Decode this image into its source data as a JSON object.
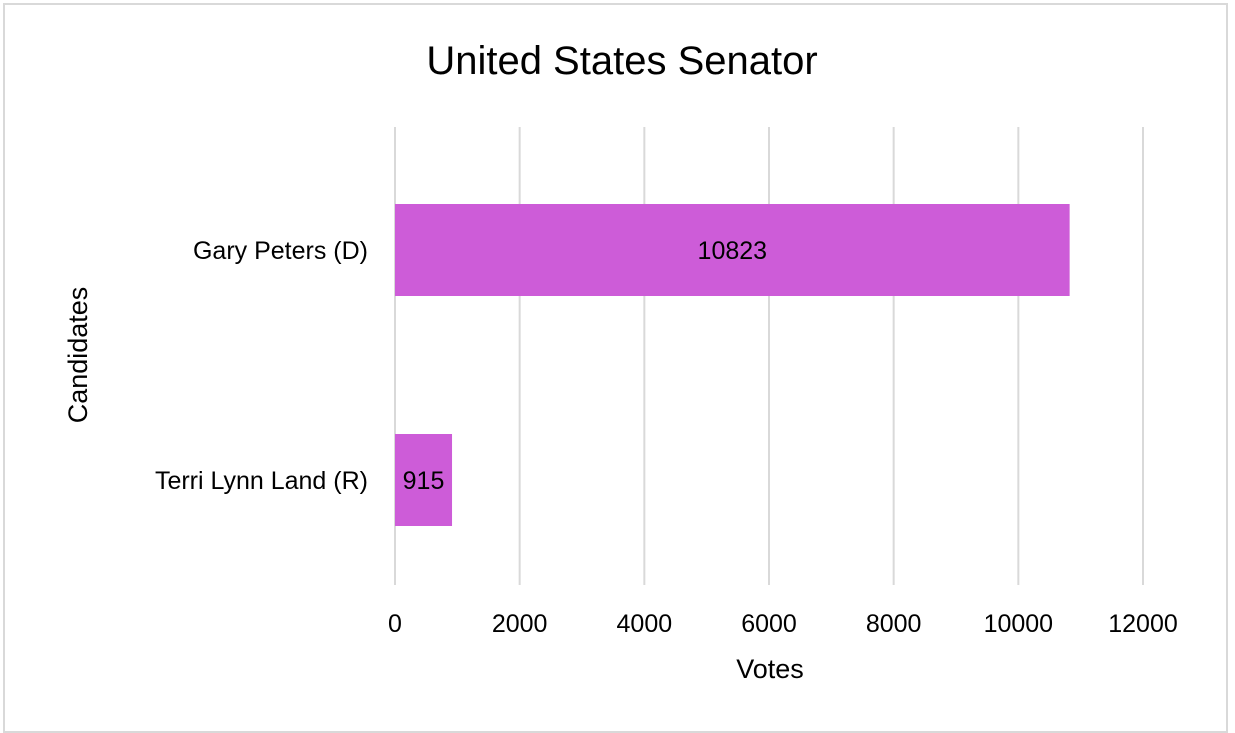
{
  "chart_data": {
    "type": "bar",
    "orientation": "horizontal",
    "title": "United States Senator",
    "xlabel": "Votes",
    "ylabel": "Candidates",
    "categories": [
      "Gary Peters (D)",
      "Terri Lynn Land (R)"
    ],
    "values": [
      10823,
      915
    ],
    "xlim": [
      0,
      12000
    ],
    "x_ticks": [
      "0",
      "2000",
      "4000",
      "6000",
      "8000",
      "10000",
      "12000"
    ],
    "grid": "vertical",
    "legend": "none",
    "bar_color": "#cd5cd8",
    "grid_color": "#d9d9d9"
  }
}
